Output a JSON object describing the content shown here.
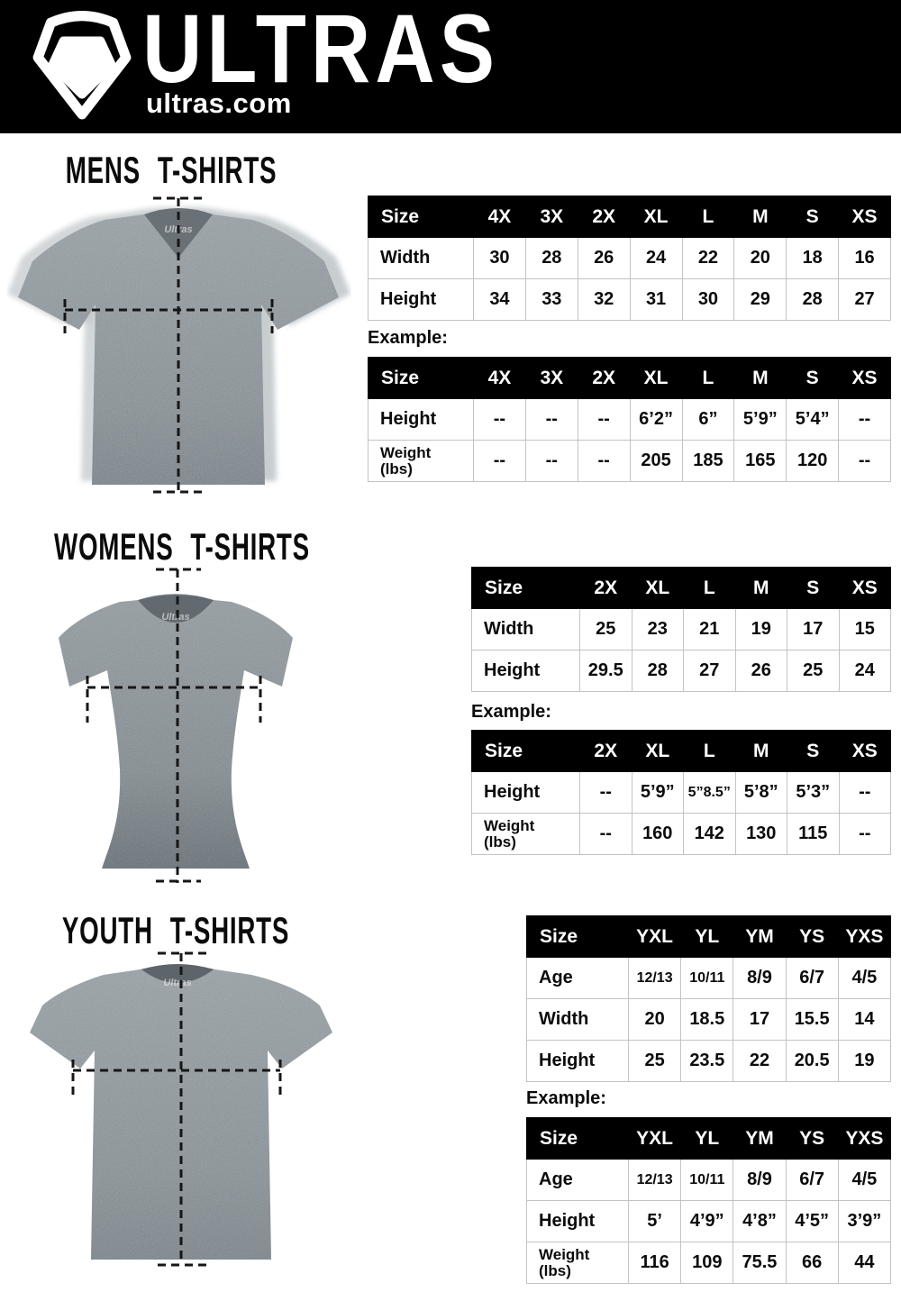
{
  "header": {
    "brand": "ULTRAS",
    "site": "ultras.com",
    "logo_icon": "pentagon-shield-icon"
  },
  "colors": {
    "header_bg": "#000000",
    "header_text": "#ffffff",
    "table_header_bg": "#000000",
    "table_header_text": "#ffffff",
    "table_border": "#c3c3c3",
    "body_bg": "#ffffff",
    "text": "#0c0c0c",
    "shirt_gray": "#8d959a"
  },
  "sections": [
    {
      "id": "mens",
      "title": "MENS T-SHIRTS",
      "collar_label": "Ultras",
      "example_label": "Example:",
      "size_table": {
        "columns": [
          "Size",
          "4X",
          "3X",
          "2X",
          "XL",
          "L",
          "M",
          "S",
          "XS"
        ],
        "rows": [
          {
            "label": "Width",
            "values": [
              "30",
              "28",
              "26",
              "24",
              "22",
              "20",
              "18",
              "16"
            ]
          },
          {
            "label": "Height",
            "values": [
              "34",
              "33",
              "32",
              "31",
              "30",
              "29",
              "28",
              "27"
            ]
          }
        ]
      },
      "example_table": {
        "columns": [
          "Size",
          "4X",
          "3X",
          "2X",
          "XL",
          "L",
          "M",
          "S",
          "XS"
        ],
        "rows": [
          {
            "label": "Height",
            "values": [
              "--",
              "--",
              "--",
              "6’2”",
              "6”",
              "5’9”",
              "5’4”",
              "--"
            ]
          },
          {
            "label": "Weight",
            "label_sub": "(lbs)",
            "values": [
              "--",
              "--",
              "--",
              "205",
              "185",
              "165",
              "120",
              "--"
            ]
          }
        ]
      }
    },
    {
      "id": "womens",
      "title": "WOMENS T-SHIRTS",
      "collar_label": "Ultras",
      "example_label": "Example:",
      "size_table": {
        "columns": [
          "Size",
          "2X",
          "XL",
          "L",
          "M",
          "S",
          "XS"
        ],
        "rows": [
          {
            "label": "Width",
            "values": [
              "25",
              "23",
              "21",
              "19",
              "17",
              "15"
            ]
          },
          {
            "label": "Height",
            "values": [
              "29.5",
              "28",
              "27",
              "26",
              "25",
              "24"
            ]
          }
        ]
      },
      "example_table": {
        "columns": [
          "Size",
          "2X",
          "XL",
          "L",
          "M",
          "S",
          "XS"
        ],
        "rows": [
          {
            "label": "Height",
            "values": [
              "--",
              "5’9”",
              "5”8.5”",
              "5’8”",
              "5’3”",
              "--"
            ]
          },
          {
            "label": "Weight",
            "label_sub": "(lbs)",
            "values": [
              "--",
              "160",
              "142",
              "130",
              "115",
              "--"
            ]
          }
        ]
      }
    },
    {
      "id": "youth",
      "title": "YOUTH T-SHIRTS",
      "collar_label": "Ultras",
      "example_label": "Example:",
      "size_table": {
        "columns": [
          "Size",
          "YXL",
          "YL",
          "YM",
          "YS",
          "YXS"
        ],
        "rows": [
          {
            "label": "Age",
            "values": [
              "12/13",
              "10/11",
              "8/9",
              "6/7",
              "4/5"
            ]
          },
          {
            "label": "Width",
            "values": [
              "20",
              "18.5",
              "17",
              "15.5",
              "14"
            ]
          },
          {
            "label": "Height",
            "values": [
              "25",
              "23.5",
              "22",
              "20.5",
              "19"
            ]
          }
        ]
      },
      "example_table": {
        "columns": [
          "Size",
          "YXL",
          "YL",
          "YM",
          "YS",
          "YXS"
        ],
        "rows": [
          {
            "label": "Age",
            "values": [
              "12/13",
              "10/11",
              "8/9",
              "6/7",
              "4/5"
            ]
          },
          {
            "label": "Height",
            "values": [
              "5’",
              "4’9”",
              "4’8”",
              "4’5”",
              "3’9”"
            ]
          },
          {
            "label": "Weight",
            "label_sub": "(lbs)",
            "values": [
              "116",
              "109",
              "75.5",
              "66",
              "44"
            ]
          }
        ]
      }
    }
  ]
}
